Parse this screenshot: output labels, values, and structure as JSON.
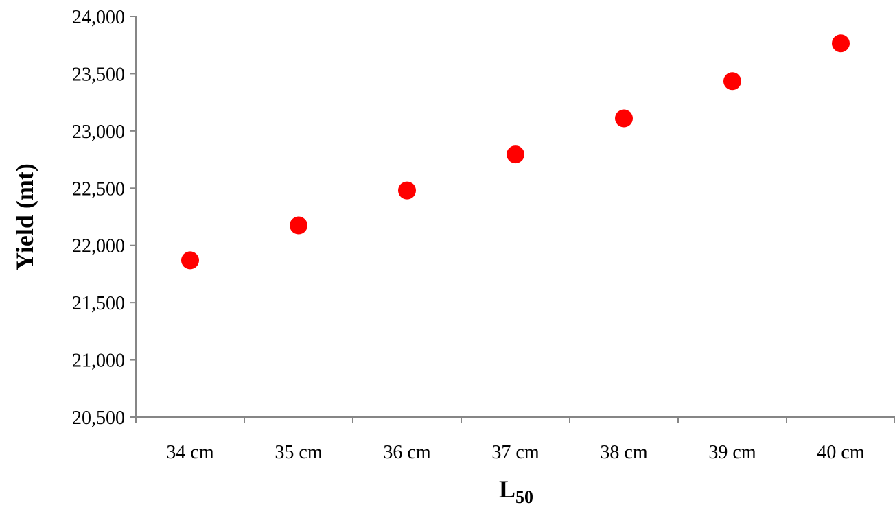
{
  "chart_data": {
    "type": "scatter",
    "xlabel": "L",
    "xlabel_subscript": "50",
    "ylabel": "Yield (mt)",
    "categories": [
      "34 cm",
      "35 cm",
      "36 cm",
      "37 cm",
      "38 cm",
      "39 cm",
      "40 cm"
    ],
    "values": [
      21870,
      22175,
      22480,
      22795,
      23110,
      23435,
      23765
    ],
    "ylim": [
      20500,
      24000
    ],
    "y_ticks": [
      20500,
      21000,
      21500,
      22000,
      22500,
      23000,
      23500,
      24000
    ],
    "y_tick_labels": [
      "20,500",
      "21,000",
      "21,500",
      "22,000",
      "22,500",
      "23,000",
      "23,500",
      "24,000"
    ],
    "grid": false,
    "legend": "none",
    "marker_color": "#ff0000",
    "axis_color": "#868686"
  }
}
